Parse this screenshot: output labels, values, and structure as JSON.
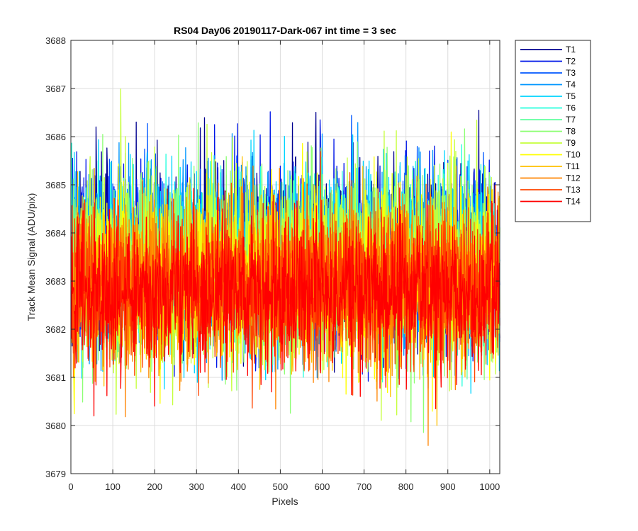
{
  "chart_data": {
    "type": "line",
    "title": "RS04 Day06 20190117-Dark-067 int time = 3 sec",
    "xlabel": "Pixels",
    "ylabel": "Track Mean Signal (ADU/pix)",
    "xlim": [
      0,
      1024
    ],
    "ylim": [
      3679,
      3688
    ],
    "xticks": [
      0,
      100,
      200,
      300,
      400,
      500,
      600,
      700,
      800,
      900,
      1000
    ],
    "yticks": [
      3679,
      3680,
      3681,
      3682,
      3683,
      3684,
      3685,
      3686,
      3687,
      3688
    ],
    "grid": true,
    "legend_position": "outside-top-right",
    "x_point_count": 1024,
    "series": [
      {
        "name": "T1",
        "color": "#00008F",
        "mean": 3683.6,
        "min": 3680.2,
        "max": 3687.1
      },
      {
        "name": "T2",
        "color": "#0016E8",
        "mean": 3683.6,
        "min": 3680.1,
        "max": 3687.0
      },
      {
        "name": "T3",
        "color": "#0057FF",
        "mean": 3683.5,
        "min": 3680.3,
        "max": 3686.6
      },
      {
        "name": "T4",
        "color": "#0096FF",
        "mean": 3683.5,
        "min": 3680.2,
        "max": 3686.6
      },
      {
        "name": "T5",
        "color": "#00D5FF",
        "mean": 3683.4,
        "min": 3679.9,
        "max": 3687.1
      },
      {
        "name": "T6",
        "color": "#22FFDD",
        "mean": 3683.4,
        "min": 3680.4,
        "max": 3686.8
      },
      {
        "name": "T7",
        "color": "#60FF9F",
        "mean": 3683.3,
        "min": 3680.5,
        "max": 3686.3
      },
      {
        "name": "T8",
        "color": "#8CFF73",
        "mean": 3683.3,
        "min": 3679.2,
        "max": 3686.6
      },
      {
        "name": "T9",
        "color": "#C5FF3A",
        "mean": 3683.2,
        "min": 3679.5,
        "max": 3687.2
      },
      {
        "name": "T10",
        "color": "#FFFF00",
        "mean": 3683.1,
        "min": 3680.0,
        "max": 3686.3
      },
      {
        "name": "T11",
        "color": "#FFC100",
        "mean": 3683.0,
        "min": 3680.0,
        "max": 3686.2
      },
      {
        "name": "T12",
        "color": "#FF8400",
        "mean": 3682.9,
        "min": 3679.5,
        "max": 3686.1
      },
      {
        "name": "T13",
        "color": "#FF4400",
        "mean": 3682.9,
        "min": 3679.7,
        "max": 3685.8
      },
      {
        "name": "T14",
        "color": "#FF0000",
        "mean": 3682.8,
        "min": 3679.5,
        "max": 3685.4
      }
    ]
  }
}
